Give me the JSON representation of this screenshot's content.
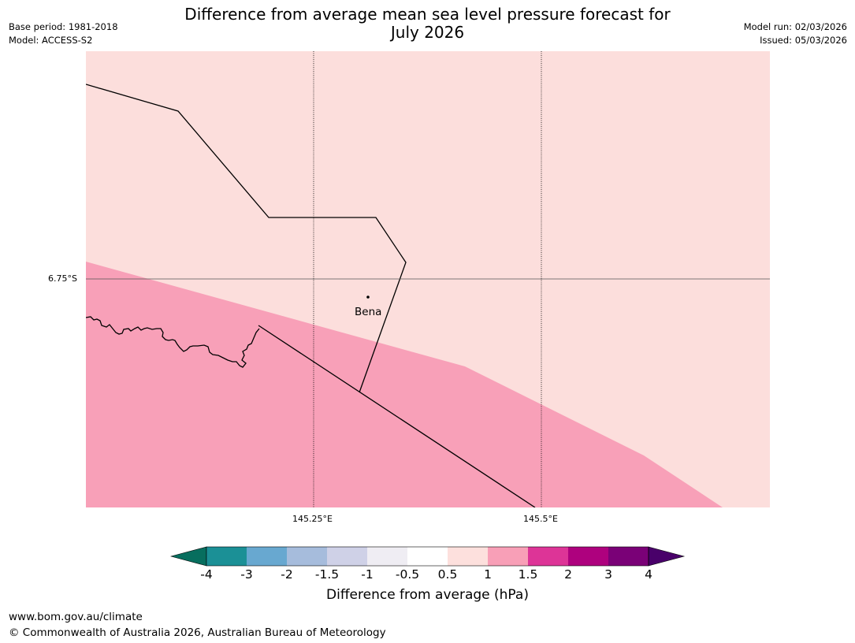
{
  "header": {
    "title_line1": "Difference from average mean sea level pressure forecast for",
    "title_line2": "July 2026",
    "base_period": "Base period: 1981-2018",
    "model": "Model: ACCESS-S2",
    "model_run": "Model run: 02/03/2026",
    "issued": "Issued: 05/03/2026"
  },
  "map": {
    "gridlines": {
      "lon_labels": [
        "145.25°E",
        "145.5°E"
      ],
      "lat_labels": [
        "6.75°S"
      ]
    },
    "places": [
      {
        "name": "Bena"
      }
    ],
    "fill_colors": {
      "anomaly_0_5_to_1": "#fcdedc",
      "anomaly_1_to_1_5": "#f8a0b8"
    }
  },
  "colorbar": {
    "label": "Difference from average (hPa)",
    "ticks": [
      "-4",
      "-3",
      "-2",
      "-1.5",
      "-1",
      "-0.5",
      "0.5",
      "1",
      "1.5",
      "2",
      "3",
      "4"
    ],
    "colors": [
      "#076e5e",
      "#1b9096",
      "#68a8d0",
      "#a6bcdc",
      "#cfd1e7",
      "#efedf3",
      "#ffffff",
      "#fde0dd",
      "#f89fb7",
      "#dd3497",
      "#ae017e",
      "#7a0177",
      "#49006a"
    ]
  },
  "footer": {
    "url": "www.bom.gov.au/climate",
    "copyright": "© Commonwealth of Australia 2026, Australian Bureau of Meteorology"
  }
}
